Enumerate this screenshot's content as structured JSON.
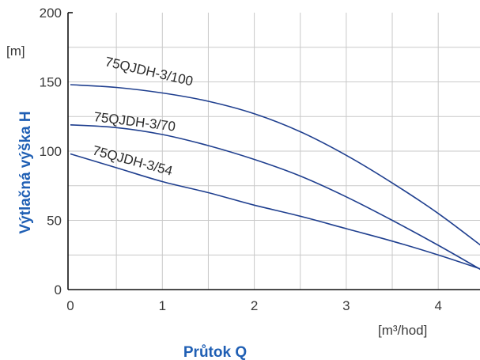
{
  "chart_data": {
    "type": "line",
    "xlabel": "Průtok Q",
    "ylabel": "Výtlačná výška H",
    "x_unit": "[m³/hod]",
    "y_unit": "[m]",
    "xlim": [
      0,
      4.5
    ],
    "ylim": [
      0,
      200
    ],
    "x_ticks": [
      "0",
      "1",
      "2",
      "3",
      "4"
    ],
    "y_ticks": [
      "0",
      "50",
      "100",
      "150",
      "200"
    ],
    "grid": true,
    "line_color": "#1f3f8f",
    "series": [
      {
        "name": "75QJDH-3/100",
        "x": [
          0,
          0.5,
          1,
          1.5,
          2,
          2.5,
          3,
          3.5,
          4,
          4.5
        ],
        "y": [
          148,
          146,
          142,
          136,
          127,
          114,
          97,
          77,
          55,
          30
        ]
      },
      {
        "name": "75QJDH-3/70",
        "x": [
          0,
          0.5,
          1,
          1.5,
          2,
          2.5,
          3,
          3.5,
          4,
          4.5
        ],
        "y": [
          119,
          117,
          112,
          104,
          94,
          82,
          67,
          50,
          32,
          13
        ]
      },
      {
        "name": "75QJDH-3/54",
        "x": [
          0,
          0.5,
          1,
          1.5,
          2,
          2.5,
          3,
          3.5,
          4,
          4.5
        ],
        "y": [
          98,
          88,
          78,
          70,
          61,
          53,
          44,
          35,
          25,
          14
        ]
      }
    ]
  }
}
